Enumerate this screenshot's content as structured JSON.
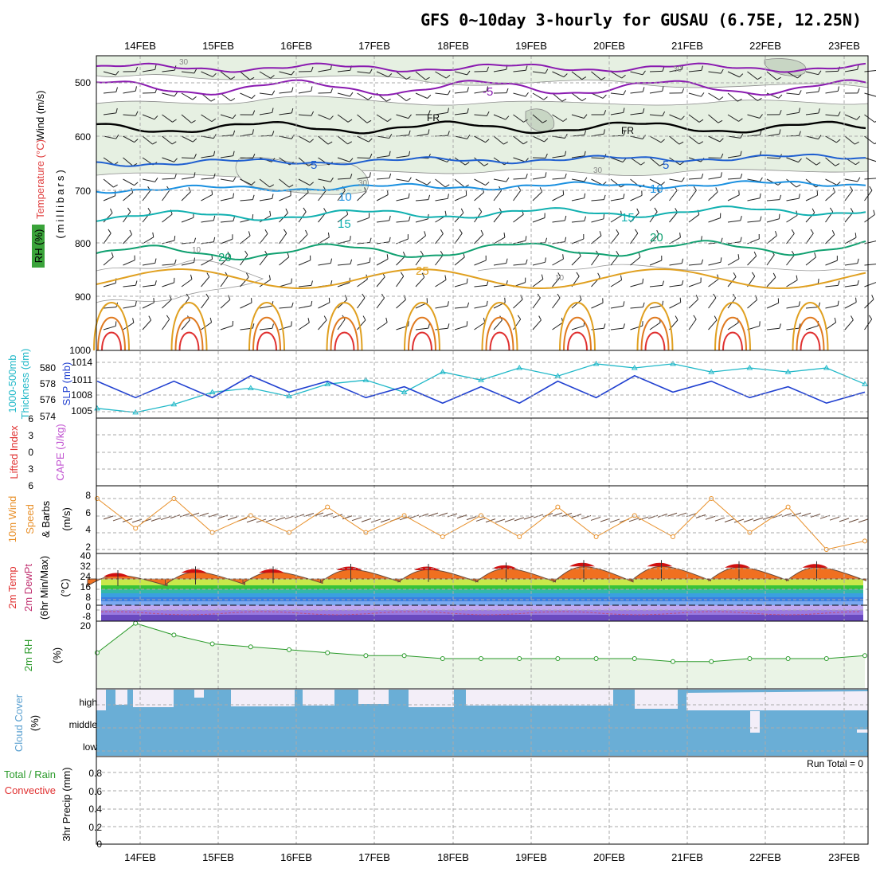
{
  "title": "GFS 0~10day 3-hourly for GUSAU (6.75E, 12.25N)",
  "dates": [
    "14FEB",
    "15FEB",
    "16FEB",
    "17FEB",
    "18FEB",
    "19FEB",
    "20FEB",
    "21FEB",
    "22FEB",
    "23FEB"
  ],
  "panels": {
    "upper": {
      "label_wind": "Wind (m/s)",
      "label_temp": "Temperature (°C)",
      "label_rh": "RH (%)",
      "label_pres": "(millibars)",
      "ticks": [
        "500",
        "600",
        "700",
        "800",
        "900",
        "1000"
      ],
      "isotherm_labels": [
        "-5",
        "FR",
        "FR",
        "5",
        "5",
        "10",
        "10",
        "15",
        "15",
        "20",
        "20",
        "25"
      ],
      "rh_labels": [
        "30",
        "30",
        "30",
        "30",
        "10",
        "10"
      ]
    },
    "slp": {
      "label_thk1": "1000-500mb",
      "label_thk2": "Thickness (dm)",
      "label_slp": "SLP (mb)",
      "ticks_thk": [
        "580",
        "578",
        "576",
        "574"
      ],
      "ticks_slp": [
        "1014",
        "1011",
        "1008",
        "1005"
      ]
    },
    "li": {
      "label_li": "Lifted Index",
      "label_cape": "CAPE (J/kg)",
      "ticks": [
        "6",
        "3",
        "0",
        "3",
        "6"
      ]
    },
    "wind10": {
      "label1": "10m Wind",
      "label2": "Speed",
      "label3": "& Barbs",
      "label_units": "(m/s)",
      "ticks": [
        "8",
        "6",
        "4",
        "2"
      ]
    },
    "temp": {
      "label1": "2m Temp",
      "label2": "2m DewPt",
      "label3": "(6hr Min/Max)",
      "label_units": "(°C)",
      "ticks": [
        "40",
        "32",
        "24",
        "16",
        "8",
        "0",
        "-8"
      ]
    },
    "rh": {
      "label1": "2m RH",
      "label_units": "(%)",
      "ticks": [
        "20"
      ]
    },
    "cloud": {
      "label1": "Cloud Cover",
      "label_units": "(%)",
      "levels": [
        "high",
        "middle",
        "low"
      ]
    },
    "precip": {
      "label1": "3hr Precip (mm)",
      "label2": "Total / Rain",
      "label3": "Convective",
      "run_total": "Run Total = 0",
      "ticks": [
        "0.8",
        "0.6",
        "0.4",
        "0.2",
        "0"
      ]
    }
  },
  "colors": {
    "slp": "#1f3fd0",
    "thickness": "#20b8c8",
    "wind_speed": "#e8902a",
    "rh_line": "#2a9a2a",
    "rh_fill": "#eaf4e6",
    "cloud": "#6aaed6",
    "cloud_clear": "#f3eef8",
    "lifted": "#e03030",
    "temp_warm": "#f07020",
    "temp_hot": "#d01010",
    "isotherm_cold": "#8a1ab0",
    "isotherm_5": "#1f5fd0",
    "isotherm_10": "#1a90e0",
    "isotherm_15": "#10b0b0",
    "isotherm_20": "#10a070",
    "isotherm_25": "#e0a020"
  },
  "chart_data": {
    "type": "line",
    "x": [
      "13FEB 12Z",
      "14FEB 00Z",
      "14FEB 12Z",
      "15FEB 00Z",
      "15FEB 12Z",
      "16FEB 00Z",
      "16FEB 12Z",
      "17FEB 00Z",
      "17FEB 12Z",
      "18FEB 00Z",
      "18FEB 12Z",
      "19FEB 00Z",
      "19FEB 12Z",
      "20FEB 00Z",
      "20FEB 12Z",
      "21FEB 00Z",
      "21FEB 12Z",
      "22FEB 00Z",
      "22FEB 12Z",
      "23FEB 00Z",
      "23FEB 06Z"
    ],
    "series": [],
    "slp_mb": [
      1011,
      1008,
      1011,
      1008,
      1012,
      1009,
      1011,
      1008,
      1010,
      1007,
      1010,
      1007,
      1011,
      1008,
      1012,
      1009,
      1011,
      1008,
      1010,
      1007,
      1009
    ],
    "thickness_dm": [
      575,
      574.5,
      575.5,
      577,
      577.5,
      576.5,
      578,
      578.5,
      577,
      579.5,
      578.5,
      580,
      579,
      580.5,
      580,
      580.5,
      579.5,
      580,
      579.5,
      580,
      578
    ],
    "wind10_ms": [
      8,
      4.5,
      8,
      4,
      6,
      4,
      7,
      4,
      6,
      3.5,
      6,
      3.5,
      7,
      3.5,
      6,
      3.5,
      8,
      4,
      7,
      2,
      3
    ],
    "temp2m_max_c": [
      30,
      33,
      33,
      35,
      35,
      36,
      38,
      38,
      37,
      37
    ],
    "temp2m_min_c": [
      19,
      20,
      21,
      22,
      22,
      22,
      22,
      23,
      23,
      23
    ],
    "rh2m_pct": [
      12,
      22,
      18,
      15,
      14,
      13,
      12,
      11,
      11,
      10,
      10,
      10,
      10,
      10,
      10,
      9,
      9,
      10,
      10,
      10,
      11
    ],
    "precip_run_total_mm": 0,
    "isotherms_c": [
      -5,
      0,
      5,
      10,
      15,
      20,
      25
    ]
  }
}
